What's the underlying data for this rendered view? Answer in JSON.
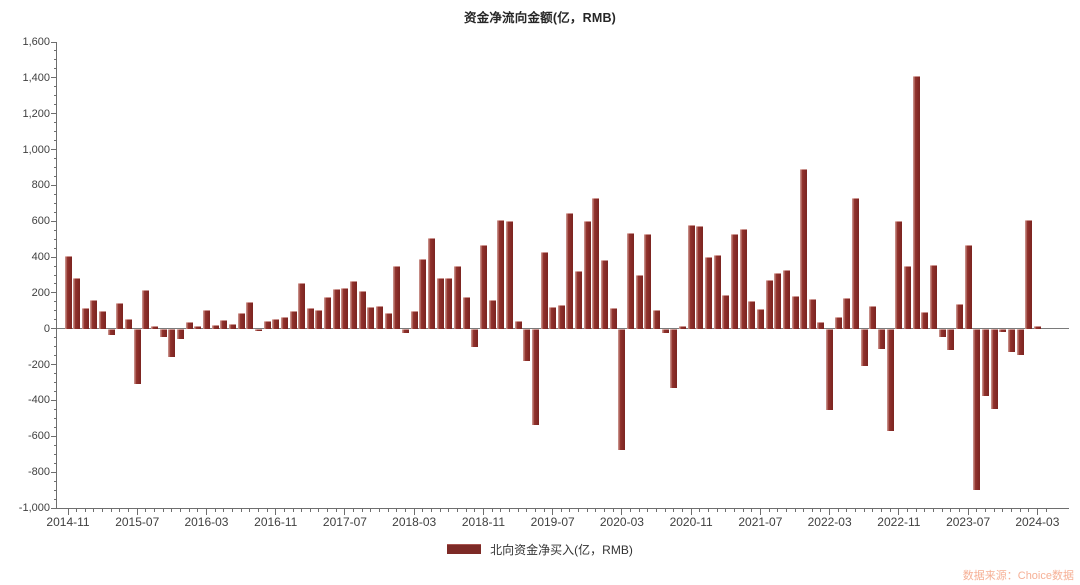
{
  "title": "资金净流向金额(亿，RMB)",
  "legend": {
    "label": "北向资金净买入(亿，RMB)",
    "swatch_color": "#7d2a26"
  },
  "source_note": "数据来源：Choice数据",
  "colors": {
    "bar_fill": "#8d2f2b",
    "bar_highlight": "#c58a84",
    "axis": "#6e6e6e",
    "tick_text": "#404040",
    "title_text": "#262626",
    "source_text": "#f6b096"
  },
  "chart_data": {
    "type": "bar",
    "title": "资金净流向金额(亿，RMB)",
    "series_name": "北向资金净买入(亿，RMB)",
    "x_start": "2014-11",
    "x_end": "2024-03",
    "frequency": "monthly",
    "x_tick_labels": [
      "2014-11",
      "2015-07",
      "2016-03",
      "2016-11",
      "2017-07",
      "2018-03",
      "2018-11",
      "2019-07",
      "2020-03",
      "2020-11",
      "2021-07",
      "2022-03",
      "2022-11",
      "2023-07",
      "2024-03"
    ],
    "x_label_every_n_months": 8,
    "ylim": [
      -1000,
      1600
    ],
    "y_major_step": 200,
    "y_minor_step": 50,
    "y_ticks": [
      -1000,
      -800,
      -600,
      -400,
      -200,
      0,
      200,
      400,
      600,
      800,
      1000,
      1200,
      1400,
      1600
    ],
    "grid": false,
    "legend_position": "bottom",
    "values": [
      408,
      281,
      115,
      160,
      100,
      -33,
      143,
      56,
      -306,
      217,
      17,
      -46,
      -158,
      -56,
      37,
      13,
      106,
      22,
      47,
      28,
      87,
      152,
      -15,
      41,
      54,
      68,
      100,
      258,
      115,
      102,
      180,
      221,
      227,
      269,
      208,
      119,
      128,
      87,
      351,
      -25,
      97,
      387,
      508,
      285,
      284,
      350,
      175,
      -103,
      465,
      162,
      607,
      604,
      43,
      -180,
      -537,
      426,
      120,
      130,
      647,
      320,
      604,
      730,
      384,
      116,
      -679,
      533,
      301,
      527,
      104,
      -21,
      -328,
      18,
      579,
      572,
      400,
      412,
      187,
      526,
      558,
      154,
      108,
      273,
      310,
      328,
      185,
      889,
      168,
      40,
      -451,
      63,
      169,
      730,
      -210,
      127,
      -112,
      -573,
      601,
      350,
      1413,
      92,
      354,
      -46,
      -121,
      140,
      470,
      -897,
      -375,
      -448,
      -18,
      -129,
      -145,
      607,
      17
    ]
  }
}
